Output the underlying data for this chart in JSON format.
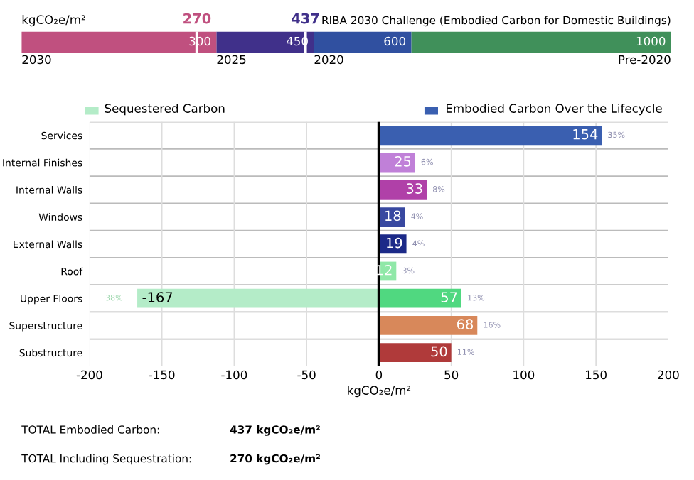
{
  "chart_data": [
    {
      "type": "bar",
      "orientation": "horizontal",
      "stacked": true,
      "title": "RIBA 2030 Challenge (Embodied Carbon for Domestic Buildings)",
      "categories": [
        null
      ],
      "series": [
        {
          "color": "#c0507f",
          "values": [
            300
          ]
        },
        {
          "color": "#40308a",
          "values": [
            150
          ]
        },
        {
          "color": "#3050a0",
          "values": [
            150
          ]
        },
        {
          "color": "#40905a",
          "values": [
            400
          ]
        }
      ],
      "xlim": [
        0,
        1000
      ],
      "annotations": [
        "kgCO₂e/m²",
        {
          "text": "2030",
          "x": 0
        },
        {
          "text": "2025",
          "x": 300
        },
        {
          "text": "2020",
          "x": 450
        },
        {
          "text": "Pre-2020",
          "x": 1000
        },
        {
          "text": "300",
          "x": 300
        },
        {
          "text": "450",
          "x": 450
        },
        {
          "text": "600",
          "x": 600
        },
        {
          "text": "1000",
          "x": 1000
        }
      ],
      "ref_lines": [
        {
          "axis": "x",
          "value": 270,
          "label": "270",
          "color": "#ffffff"
        },
        {
          "axis": "x",
          "value": 437,
          "label": "437",
          "color": "#ffffff"
        }
      ],
      "tick_labels": false
    },
    {
      "type": "bar",
      "orientation": "horizontal",
      "categories": [
        "Services",
        "Internal Finishes",
        "Internal Walls",
        "Windows",
        "External Walls",
        "Roof",
        "Upper Floors",
        "Superstructure",
        "Substructure"
      ],
      "series": [
        {
          "name": "Embodied Carbon Over the Lifecycle",
          "values": [
            154,
            25,
            33,
            18,
            19,
            12,
            57,
            68,
            50
          ],
          "colors": [
            "#3a5fb0",
            "#c080d8",
            "#b040a8",
            "#3848a0",
            "#1c2a88",
            "#90e8a8",
            "#50d880",
            "#d8885a",
            "#b03a3a"
          ]
        },
        {
          "name": "Sequestered Carbon",
          "values": [
            null,
            null,
            null,
            null,
            null,
            null,
            -167,
            null,
            null
          ],
          "color": "#b4ecc8"
        }
      ],
      "data_labels": true,
      "xlim": [
        -200,
        200
      ],
      "xticks": [
        -200,
        -150,
        -100,
        -50,
        0,
        50,
        100,
        150,
        200
      ],
      "xlabel": "kgCO₂e/m²",
      "grid": true,
      "legend": "top",
      "ref_lines": [
        {
          "axis": "x",
          "value": 0,
          "color": "#000000"
        }
      ],
      "annotations": [
        {
          "text": "35%",
          "x": 154,
          "y": "Services"
        },
        {
          "text": "6%",
          "x": 25,
          "y": "Internal Finishes"
        },
        {
          "text": "8%",
          "x": 33,
          "y": "Internal Walls"
        },
        {
          "text": "4%",
          "x": 18,
          "y": "Windows"
        },
        {
          "text": "4%",
          "x": 19,
          "y": "External Walls"
        },
        {
          "text": "3%",
          "x": 12,
          "y": "Roof"
        },
        {
          "text": "13%",
          "x": 57,
          "y": "Upper Floors"
        },
        {
          "text": "16%",
          "x": 68,
          "y": "Superstructure"
        },
        {
          "text": "11%",
          "x": 50,
          "y": "Substructure"
        },
        {
          "text": "38%",
          "x": -167,
          "y": "Upper Floors"
        },
        "TOTAL Embodied Carbon:",
        "437 kgCO₂e/m²",
        "TOTAL Including Sequestration:",
        "270 kgCO₂e/m²"
      ]
    }
  ]
}
